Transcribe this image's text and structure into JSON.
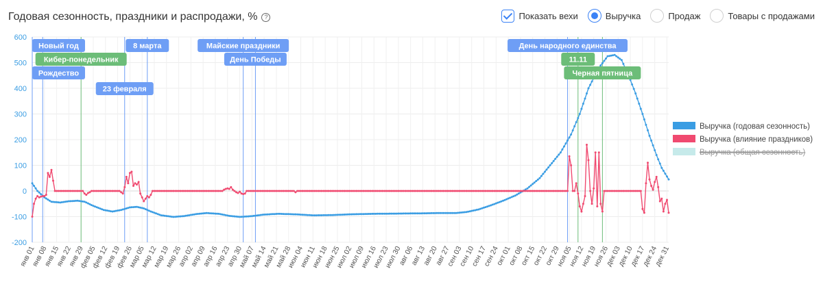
{
  "header": {
    "title": "Годовая сезонность, праздники и распродажи, %",
    "help_glyph": "?"
  },
  "controls": {
    "show_milestones": "Показать вехи",
    "radio_revenue": "Выручка",
    "radio_sales": "Продаж",
    "radio_products": "Товары с продажами",
    "selected": "radio_revenue"
  },
  "chart_data": {
    "type": "line",
    "title": "",
    "ylim": [
      -200,
      600
    ],
    "yticks": [
      -200,
      -100,
      0,
      100,
      200,
      300,
      400,
      500,
      600
    ],
    "xlim": [
      1,
      366
    ],
    "grid": true,
    "legend_position": "right",
    "xtick_days": [
      1,
      8,
      15,
      22,
      29,
      36,
      43,
      50,
      57,
      64,
      71,
      78,
      85,
      92,
      99,
      106,
      113,
      120,
      127,
      134,
      141,
      148,
      155,
      162,
      169,
      176,
      183,
      190,
      197,
      204,
      211,
      218,
      225,
      232,
      239,
      246,
      253,
      260,
      267,
      274,
      281,
      288,
      295,
      302,
      309,
      316,
      323,
      330,
      337,
      344,
      351,
      358,
      365
    ],
    "xtick_labels": [
      "янв 01",
      "янв 08",
      "янв 15",
      "янв 22",
      "янв 29",
      "фев 05",
      "фев 12",
      "фев 19",
      "фев 26",
      "мар 05",
      "мар 12",
      "мар 19",
      "мар 26",
      "апр 02",
      "апр 09",
      "апр 16",
      "апр 23",
      "апр 30",
      "май 07",
      "май 14",
      "май 21",
      "май 28",
      "июн 04",
      "июн 11",
      "июн 18",
      "июн 25",
      "июл 02",
      "июл 09",
      "июл 16",
      "июл 23",
      "июл 30",
      "авг 06",
      "авг 13",
      "авг 20",
      "авг 27",
      "сен 03",
      "сен 10",
      "сен 17",
      "сен 24",
      "окт 01",
      "окт 08",
      "окт 15",
      "окт 22",
      "окт 29",
      "ноя 05",
      "ноя 12",
      "ноя 19",
      "ноя 26",
      "дек 03",
      "дек 10",
      "дек 17",
      "дек 24",
      "дек 31"
    ],
    "series": [
      {
        "name": "Выручка (годовая сезонность)",
        "color": "#3a9de3",
        "visible": true,
        "points": [
          [
            1,
            30
          ],
          [
            4,
            0
          ],
          [
            8,
            -25
          ],
          [
            12,
            -42
          ],
          [
            17,
            -45
          ],
          [
            22,
            -40
          ],
          [
            27,
            -38
          ],
          [
            31,
            -42
          ],
          [
            36,
            -58
          ],
          [
            42,
            -74
          ],
          [
            47,
            -80
          ],
          [
            52,
            -74
          ],
          [
            57,
            -64
          ],
          [
            61,
            -62
          ],
          [
            65,
            -68
          ],
          [
            69,
            -80
          ],
          [
            75,
            -95
          ],
          [
            82,
            -101
          ],
          [
            88,
            -98
          ],
          [
            95,
            -90
          ],
          [
            101,
            -86
          ],
          [
            108,
            -89
          ],
          [
            114,
            -97
          ],
          [
            120,
            -101
          ],
          [
            127,
            -98
          ],
          [
            134,
            -92
          ],
          [
            142,
            -89
          ],
          [
            152,
            -91
          ],
          [
            162,
            -95
          ],
          [
            173,
            -94
          ],
          [
            183,
            -91
          ],
          [
            197,
            -89
          ],
          [
            212,
            -88
          ],
          [
            225,
            -87
          ],
          [
            235,
            -86
          ],
          [
            244,
            -86
          ],
          [
            250,
            -82
          ],
          [
            257,
            -72
          ],
          [
            264,
            -56
          ],
          [
            271,
            -38
          ],
          [
            278,
            -18
          ],
          [
            285,
            10
          ],
          [
            292,
            50
          ],
          [
            298,
            100
          ],
          [
            304,
            150
          ],
          [
            310,
            220
          ],
          [
            315,
            300
          ],
          [
            320,
            400
          ],
          [
            326,
            480
          ],
          [
            331,
            525
          ],
          [
            335,
            530
          ],
          [
            339,
            510
          ],
          [
            343,
            450
          ],
          [
            347,
            380
          ],
          [
            351,
            300
          ],
          [
            355,
            215
          ],
          [
            359,
            140
          ],
          [
            362,
            90
          ],
          [
            366,
            45
          ]
        ]
      },
      {
        "name": "Выручка (влияние праздников)",
        "color": "#f04a70",
        "visible": true,
        "points": [
          [
            1,
            -100
          ],
          [
            2,
            -50
          ],
          [
            3,
            -30
          ],
          [
            4,
            -20
          ],
          [
            5,
            -25
          ],
          [
            6,
            -22
          ],
          [
            7,
            -20
          ],
          [
            8,
            -20
          ],
          [
            9,
            -15
          ],
          [
            10,
            70
          ],
          [
            11,
            55
          ],
          [
            12,
            82
          ],
          [
            13,
            40
          ],
          [
            14,
            0
          ],
          [
            30,
            0
          ],
          [
            31,
            -10
          ],
          [
            32,
            -15
          ],
          [
            33,
            -8
          ],
          [
            34,
            -5
          ],
          [
            35,
            0
          ],
          [
            51,
            0
          ],
          [
            52,
            -5
          ],
          [
            53,
            -10
          ],
          [
            54,
            15
          ],
          [
            55,
            55
          ],
          [
            56,
            30
          ],
          [
            57,
            70
          ],
          [
            58,
            75
          ],
          [
            59,
            20
          ],
          [
            60,
            30
          ],
          [
            61,
            25
          ],
          [
            62,
            35
          ],
          [
            63,
            -10
          ],
          [
            64,
            -25
          ],
          [
            65,
            -40
          ],
          [
            66,
            -30
          ],
          [
            67,
            -20
          ],
          [
            68,
            -25
          ],
          [
            69,
            -15
          ],
          [
            70,
            0
          ],
          [
            110,
            0
          ],
          [
            111,
            5
          ],
          [
            112,
            8
          ],
          [
            113,
            10
          ],
          [
            114,
            8
          ],
          [
            115,
            15
          ],
          [
            116,
            5
          ],
          [
            117,
            0
          ],
          [
            118,
            -5
          ],
          [
            119,
            -8
          ],
          [
            120,
            -3
          ],
          [
            121,
            -10
          ],
          [
            122,
            -12
          ],
          [
            123,
            -10
          ],
          [
            124,
            0
          ],
          [
            151,
            0
          ],
          [
            152,
            -5
          ],
          [
            153,
            0
          ],
          [
            308,
            0
          ],
          [
            309,
            135
          ],
          [
            310,
            100
          ],
          [
            311,
            0
          ],
          [
            312,
            0
          ],
          [
            313,
            30
          ],
          [
            314,
            -10
          ],
          [
            315,
            -60
          ],
          [
            316,
            -80
          ],
          [
            317,
            -50
          ],
          [
            318,
            -20
          ],
          [
            319,
            180
          ],
          [
            320,
            120
          ],
          [
            321,
            0
          ],
          [
            322,
            -50
          ],
          [
            323,
            10
          ],
          [
            324,
            150
          ],
          [
            325,
            -60
          ],
          [
            326,
            150
          ],
          [
            327,
            -50
          ],
          [
            328,
            -80
          ],
          [
            329,
            0
          ],
          [
            350,
            0
          ],
          [
            351,
            -70
          ],
          [
            352,
            -85
          ],
          [
            353,
            30
          ],
          [
            354,
            110
          ],
          [
            355,
            45
          ],
          [
            356,
            20
          ],
          [
            357,
            5
          ],
          [
            358,
            35
          ],
          [
            359,
            55
          ],
          [
            360,
            15
          ],
          [
            361,
            -40
          ],
          [
            362,
            -30
          ],
          [
            363,
            -80
          ],
          [
            364,
            -50
          ],
          [
            365,
            -35
          ],
          [
            366,
            -85
          ]
        ]
      },
      {
        "name": "Выручка (общая сезонность)",
        "color": "#c6eaea",
        "visible": false,
        "points": []
      }
    ],
    "milestones": [
      {
        "label": "Новый год",
        "day": 1,
        "row": 0,
        "color": "#6e9ef5"
      },
      {
        "label": "Рождество",
        "day": 7,
        "row": 2,
        "color": "#6e9ef5"
      },
      {
        "label": "Кибер-понедельник",
        "day": 29,
        "row": 1,
        "color": "#6cbd78"
      },
      {
        "label": "23 февраля",
        "day": 54,
        "row": 3,
        "color": "#6e9ef5"
      },
      {
        "label": "8 марта",
        "day": 67,
        "row": 0,
        "color": "#6e9ef5"
      },
      {
        "label": "Майские праздники",
        "day": 122,
        "row": 0,
        "color": "#6e9ef5"
      },
      {
        "label": "День Победы",
        "day": 129,
        "row": 1,
        "color": "#6e9ef5"
      },
      {
        "label": "День народного единства",
        "day": 308,
        "row": 0,
        "color": "#6e9ef5"
      },
      {
        "label": "11.11",
        "day": 314,
        "row": 1,
        "color": "#6cbd78"
      },
      {
        "label": "Черная пятница",
        "day": 328,
        "row": 2,
        "color": "#6cbd78"
      }
    ]
  }
}
